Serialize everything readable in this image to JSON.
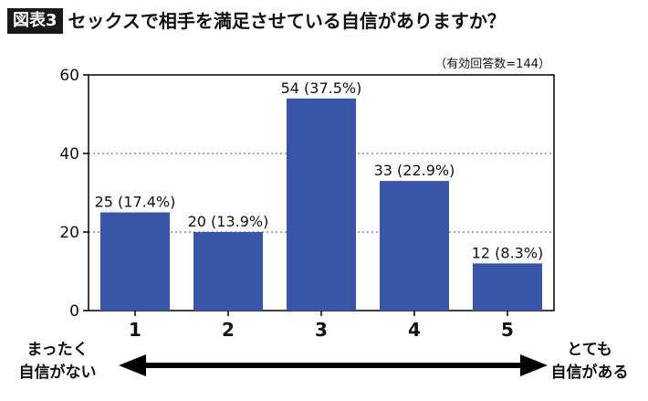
{
  "header": {
    "badge": "図表3",
    "title": "セックスで相手を満足させている自信がありますか？"
  },
  "chart_data": {
    "type": "bar",
    "title": "セックスで相手を満足させている自信がありますか？",
    "note": "（有効回答数=144）",
    "categories": [
      "1",
      "2",
      "3",
      "4",
      "5"
    ],
    "values": [
      25,
      20,
      54,
      33,
      12
    ],
    "data_labels": [
      "25 (17.4%)",
      "20 (13.9%)",
      "54 (37.5%)",
      "33 (22.9%)",
      "12 (8.3%)"
    ],
    "yticks": [
      "0",
      "20",
      "40",
      "60"
    ],
    "ylim": [
      0,
      60
    ],
    "grid": "horizontal dotted",
    "bar_color": "#3a56a8"
  },
  "scale": {
    "left_line1": "まったく",
    "left_line2": "自信がない",
    "right_line1": "とても",
    "right_line2": "自信がある"
  }
}
